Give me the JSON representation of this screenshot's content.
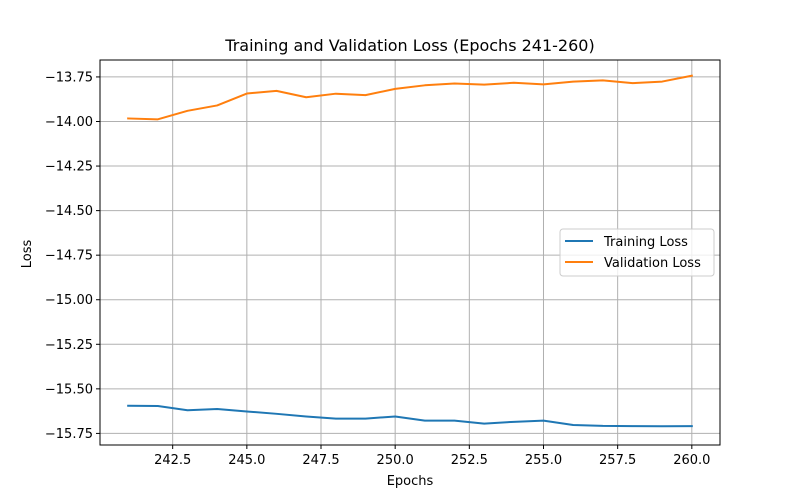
{
  "chart_data": {
    "type": "line",
    "title": "Training and Validation Loss (Epochs 241-260)",
    "xlabel": "Epochs",
    "ylabel": "Loss",
    "xlim": [
      240.05,
      260.95
    ],
    "ylim": [
      -15.815,
      -13.655
    ],
    "xticks": [
      242.5,
      245.0,
      247.5,
      250.0,
      252.5,
      255.0,
      257.5,
      260.0
    ],
    "xtick_labels": [
      "242.5",
      "245.0",
      "247.5",
      "250.0",
      "252.5",
      "255.0",
      "257.5",
      "260.0"
    ],
    "yticks": [
      -13.75,
      -14.0,
      -14.25,
      -14.5,
      -14.75,
      -15.0,
      -15.25,
      -15.5,
      -15.75
    ],
    "ytick_labels": [
      "−13.75",
      "−14.00",
      "−14.25",
      "−14.50",
      "−14.75",
      "−15.00",
      "−15.25",
      "−15.50",
      "−15.75"
    ],
    "grid": true,
    "legend_position": "center-right",
    "x": [
      241,
      242,
      243,
      244,
      245,
      246,
      247,
      248,
      249,
      250,
      251,
      252,
      253,
      254,
      255,
      256,
      257,
      258,
      259,
      260
    ],
    "series": [
      {
        "name": "Training Loss",
        "color": "#1f77b4",
        "values": [
          -15.595,
          -15.596,
          -15.62,
          -15.613,
          -15.627,
          -15.64,
          -15.655,
          -15.667,
          -15.667,
          -15.655,
          -15.678,
          -15.678,
          -15.695,
          -15.685,
          -15.678,
          -15.703,
          -15.708,
          -15.709,
          -15.71,
          -15.709
        ]
      },
      {
        "name": "Validation Loss",
        "color": "#ff7f0e",
        "values": [
          -13.983,
          -13.988,
          -13.94,
          -13.91,
          -13.843,
          -13.828,
          -13.864,
          -13.844,
          -13.852,
          -13.817,
          -13.797,
          -13.787,
          -13.793,
          -13.783,
          -13.792,
          -13.776,
          -13.769,
          -13.785,
          -13.776,
          -13.743
        ]
      }
    ]
  }
}
